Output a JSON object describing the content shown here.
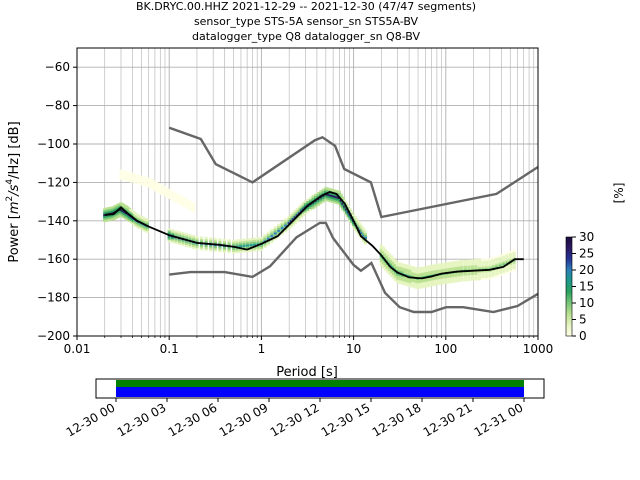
{
  "chart_data": {
    "type": "heatmap",
    "title_lines": [
      "BK.DRYC.00.HHZ   2021-12-29 -- 2021-12-30  (47/47 segments)",
      "sensor_type STS-5A sensor_sn STS5A-BV",
      "datalogger_type Q8 datalogger_sn Q8-BV"
    ],
    "xlabel": "Period [s]",
    "ylabel": "Power [m²/s⁴/Hz] [dB]",
    "ylabel_parts": {
      "pre": "Power [",
      "m": "m",
      "sq": "2",
      "s": "/s",
      "four": "4",
      "post": "/Hz] [dB]"
    },
    "x_scale": "log",
    "xlim": [
      0.01,
      1000
    ],
    "ylim": [
      -200,
      -50
    ],
    "x_ticks": [
      {
        "value": 0.01,
        "label": "0.01"
      },
      {
        "value": 0.1,
        "label": "0.1"
      },
      {
        "value": 1,
        "label": "1"
      },
      {
        "value": 10,
        "label": "10"
      },
      {
        "value": 100,
        "label": "100"
      },
      {
        "value": 1000,
        "label": "1000"
      }
    ],
    "y_ticks": [
      {
        "value": -60,
        "label": "−60"
      },
      {
        "value": -80,
        "label": "−80"
      },
      {
        "value": -100,
        "label": "−100"
      },
      {
        "value": -120,
        "label": "−120"
      },
      {
        "value": -140,
        "label": "−140"
      },
      {
        "value": -160,
        "label": "−160"
      },
      {
        "value": -180,
        "label": "−180"
      },
      {
        "value": -200,
        "label": "−200"
      }
    ],
    "grid": true,
    "colorbar": {
      "label": "[%]",
      "range": [
        0,
        30
      ],
      "ticks": [
        {
          "value": 0,
          "label": "0"
        },
        {
          "value": 5,
          "label": "5"
        },
        {
          "value": 10,
          "label": "10"
        },
        {
          "value": 15,
          "label": "15"
        },
        {
          "value": 20,
          "label": "20"
        },
        {
          "value": 25,
          "label": "25"
        },
        {
          "value": 30,
          "label": "30"
        }
      ],
      "colors": [
        "#ffffe5",
        "#e6f4c0",
        "#b9e08f",
        "#78c679",
        "#2ca25f",
        "#1d9a8a",
        "#2c7fb8",
        "#253494",
        "#2b1a63",
        "#1a0a3d"
      ]
    },
    "noise_model_high": {
      "name": "NHNM",
      "color": "#666666",
      "points": [
        [
          0.1,
          -91.5
        ],
        [
          0.22,
          -97.4
        ],
        [
          0.32,
          -110.5
        ],
        [
          0.8,
          -120
        ],
        [
          3.8,
          -98
        ],
        [
          4.6,
          -96.5
        ],
        [
          6.3,
          -101
        ],
        [
          7.9,
          -113
        ],
        [
          15.4,
          -120
        ],
        [
          20,
          -138
        ],
        [
          354.8,
          -126
        ],
        [
          1000,
          -112
        ]
      ]
    },
    "noise_model_low": {
      "name": "NLNM",
      "color": "#666666",
      "points": [
        [
          0.1,
          -168
        ],
        [
          0.17,
          -166.7
        ],
        [
          0.4,
          -166.7
        ],
        [
          0.8,
          -169.2
        ],
        [
          1.24,
          -163.7
        ],
        [
          2.4,
          -148.6
        ],
        [
          4.3,
          -141.1
        ],
        [
          5,
          -141.1
        ],
        [
          6,
          -149
        ],
        [
          10,
          -163
        ],
        [
          12,
          -166
        ],
        [
          15.6,
          -162
        ],
        [
          21.9,
          -177.5
        ],
        [
          31.6,
          -185
        ],
        [
          45,
          -187.5
        ],
        [
          70,
          -187.5
        ],
        [
          101,
          -185
        ],
        [
          154,
          -185
        ],
        [
          328,
          -187.5
        ],
        [
          600,
          -184.4
        ],
        [
          1000,
          -178
        ]
      ]
    },
    "mode_line": {
      "name": "mode",
      "color": "#000000",
      "points": [
        [
          0.02,
          -137
        ],
        [
          0.025,
          -136.5
        ],
        [
          0.03,
          -133
        ],
        [
          0.035,
          -136
        ],
        [
          0.045,
          -140
        ],
        [
          0.06,
          -143
        ],
        [
          0.1,
          -147.5
        ],
        [
          0.2,
          -151.5
        ],
        [
          0.35,
          -152.5
        ],
        [
          0.5,
          -153.5
        ],
        [
          0.7,
          -155
        ],
        [
          1,
          -152
        ],
        [
          1.5,
          -148
        ],
        [
          2.2,
          -140
        ],
        [
          3.2,
          -132
        ],
        [
          4.5,
          -127
        ],
        [
          5.5,
          -125
        ],
        [
          6.5,
          -126
        ],
        [
          8,
          -131
        ],
        [
          10,
          -140
        ],
        [
          12,
          -148
        ],
        [
          16,
          -153
        ],
        [
          20,
          -158
        ],
        [
          25,
          -164
        ],
        [
          30,
          -167
        ],
        [
          40,
          -169.5
        ],
        [
          55,
          -170
        ],
        [
          70,
          -169
        ],
        [
          90,
          -167.5
        ],
        [
          130,
          -166.5
        ],
        [
          200,
          -166
        ],
        [
          300,
          -165.5
        ],
        [
          420,
          -164
        ],
        [
          560,
          -160
        ],
        [
          700,
          -160
        ]
      ]
    },
    "density": [
      {
        "cells": [
          [
            0.02,
            -137,
            28
          ],
          [
            0.025,
            -136,
            30
          ],
          [
            0.03,
            -134,
            30
          ],
          [
            0.035,
            -136,
            25
          ],
          [
            0.045,
            -140,
            22
          ],
          [
            0.06,
            -143,
            20
          ]
        ],
        "spread": 3,
        "pct": 14
      },
      {
        "cells": [
          [
            0.1,
            -147.5,
            24
          ],
          [
            0.2,
            -151.5,
            20
          ],
          [
            0.5,
            -153.5,
            18
          ],
          [
            1,
            -152,
            18
          ],
          [
            2,
            -141,
            22
          ],
          [
            3,
            -133,
            24
          ],
          [
            5,
            -126,
            28
          ],
          [
            7,
            -128,
            26
          ],
          [
            10,
            -140,
            24
          ],
          [
            14,
            -150,
            20
          ]
        ],
        "spread": 3,
        "pct": 12
      },
      {
        "cells": [
          [
            20,
            -158,
            18
          ],
          [
            30,
            -167,
            16
          ],
          [
            50,
            -170,
            14
          ],
          [
            80,
            -168,
            14
          ],
          [
            150,
            -166,
            12
          ],
          [
            300,
            -165,
            10
          ],
          [
            600,
            -160,
            10
          ]
        ],
        "spread": 5,
        "pct": 6
      },
      {
        "cells": [
          [
            0.03,
            -116,
            0
          ],
          [
            0.06,
            -120,
            0
          ],
          [
            0.1,
            -126,
            0
          ],
          [
            0.2,
            -134,
            0
          ]
        ],
        "spread": 2,
        "pct": 2
      }
    ],
    "coverage_bar": {
      "ticks": [
        {
          "frac": 0,
          "label": "12-30 00"
        },
        {
          "frac": 0.125,
          "label": "12-30 03"
        },
        {
          "frac": 0.25,
          "label": "12-30 06"
        },
        {
          "frac": 0.375,
          "label": "12-30 09"
        },
        {
          "frac": 0.5,
          "label": "12-30 12"
        },
        {
          "frac": 0.625,
          "label": "12-30 15"
        },
        {
          "frac": 0.75,
          "label": "12-30 18"
        },
        {
          "frac": 0.875,
          "label": "12-30 21"
        },
        {
          "frac": 1,
          "label": "12-31 00"
        }
      ],
      "data_color": "#008000",
      "used_color": "#0000ff"
    }
  }
}
